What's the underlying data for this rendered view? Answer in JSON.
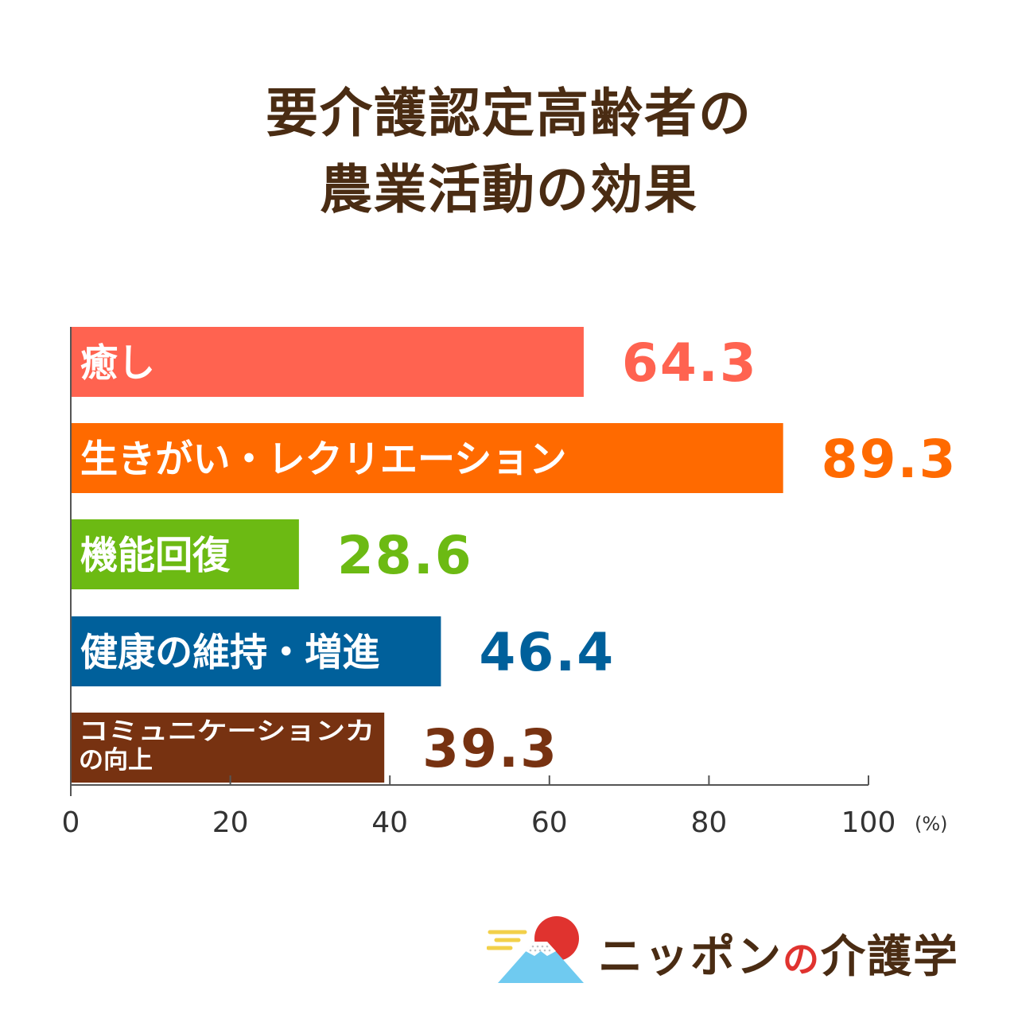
{
  "title": {
    "line1": "要介護認定高齢者の",
    "line2": "農業活動の効果"
  },
  "chart_data": {
    "type": "bar",
    "orientation": "horizontal",
    "categories": [
      "癒し",
      "生きがい・レクリエーション",
      "機能回復",
      "健康の維持・増進",
      "コミュニケーションカ\nの向上"
    ],
    "values": [
      64.3,
      89.3,
      28.6,
      46.4,
      39.3
    ],
    "value_labels": [
      "64.3",
      "89.3",
      "28.6",
      "46.4",
      "39.3"
    ],
    "colors": [
      "#ff6350",
      "#ff6a00",
      "#6cba13",
      "#00609b",
      "#773211"
    ],
    "xlim": [
      0,
      100
    ],
    "xticks": [
      "0",
      "20",
      "40",
      "60",
      "80",
      "100"
    ],
    "x_unit": "(%)",
    "grid": false
  },
  "logo": {
    "text_main": "ニッポン",
    "text_no": "の",
    "text_tail": "介護学",
    "sun_color": "#e0332f",
    "mountain_color": "#6fcaf0",
    "cloud_color": "#f2d04a"
  }
}
